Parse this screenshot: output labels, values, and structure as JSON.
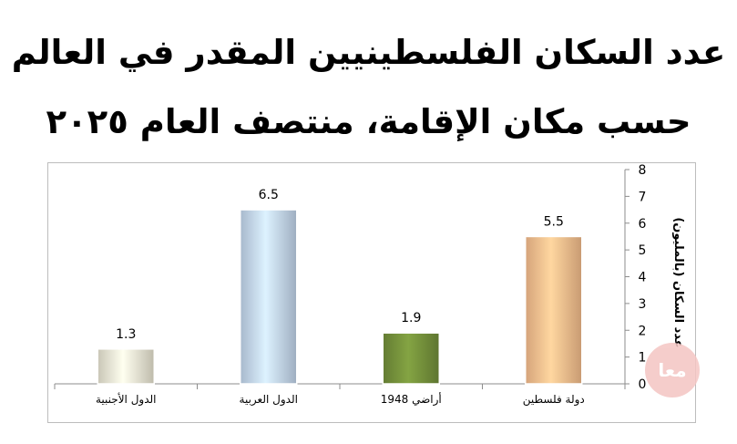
{
  "title_line_1": "عدد السكان الفلسطينيين المقدر في العالم",
  "title_line_2": "حسب مكان الإقامة، منتصف العام ٢٠٢٥",
  "logo_text": "معا",
  "chart_data": {
    "type": "bar",
    "categories": [
      "الدول الأجنبية",
      "الدول العربية",
      "أراضي 1948",
      "دولة فلسطين"
    ],
    "values": [
      1.3,
      6.5,
      1.9,
      5.5
    ],
    "data_labels": [
      "1.3",
      "6.5",
      "1.9",
      "5.5"
    ],
    "colors": [
      "#ede9d6",
      "#c5d8f0",
      "#76923c",
      "#fac08f"
    ],
    "xlabel": "",
    "ylabel": "عدد السكان (بالمليون)",
    "ylim": [
      0,
      8
    ],
    "yticks": [
      "0",
      "1",
      "2",
      "3",
      "4",
      "5",
      "6",
      "7",
      "8"
    ],
    "y_axis_position": "right",
    "grid": false,
    "legend": "none"
  }
}
